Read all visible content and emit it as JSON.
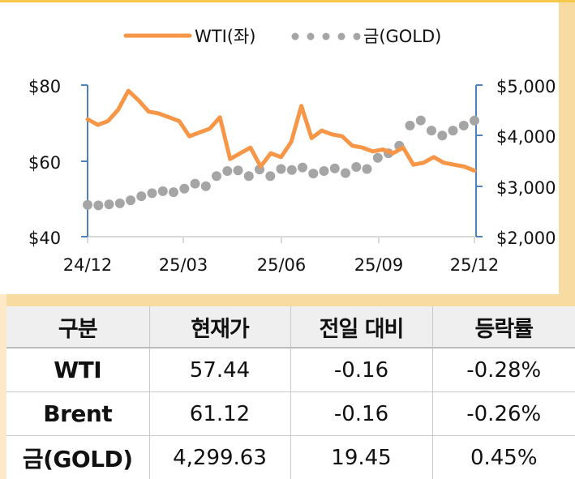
{
  "legend": {
    "wti_label": "WTI(좌)",
    "gold_label": "금(GOLD)"
  },
  "colors": {
    "wti": "#f79646",
    "gold": "#a5a5a5",
    "axis": "#4f81bd",
    "grid_base": "#d9d9d9",
    "frame_accent": "#f6c94a",
    "frame_fill": "#f7dba1"
  },
  "axes": {
    "left_ticks": [
      "$80",
      "$60",
      "$40"
    ],
    "right_ticks": [
      "$5,000",
      "$4,000",
      "$3,000",
      "$2,000"
    ],
    "x_ticks": [
      "24/12",
      "25/03",
      "25/06",
      "25/09",
      "25/12"
    ]
  },
  "chart_data": {
    "type": "line",
    "title": "",
    "xlabel": "",
    "ylabel": "",
    "x_tick_labels": [
      "24/12",
      "25/03",
      "25/06",
      "25/09",
      "25/12"
    ],
    "legend_position": "top",
    "grid": false,
    "y_left": {
      "label": "WTI",
      "range": [
        40,
        80
      ],
      "ticks": [
        "$40",
        "$60",
        "$80"
      ]
    },
    "y_right": {
      "label": "GOLD",
      "range": [
        2000,
        5000
      ],
      "ticks": [
        "$2,000",
        "$3,000",
        "$4,000",
        "$5,000"
      ]
    },
    "series": [
      {
        "name": "WTI(좌)",
        "axis": "left",
        "style": "solid-line",
        "color": "#f79646",
        "points": [
          [
            "24/12",
            71.0
          ],
          [
            "24/12+",
            69.5
          ],
          [
            "24/12++",
            70.5
          ],
          [
            "25/01a",
            73.5
          ],
          [
            "25/01b",
            78.5
          ],
          [
            "25/01c",
            76.0
          ],
          [
            "25/01d",
            73.0
          ],
          [
            "25/02a",
            72.5
          ],
          [
            "25/02b",
            71.5
          ],
          [
            "25/02c",
            70.5
          ],
          [
            "25/03",
            66.5
          ],
          [
            "25/03a",
            67.5
          ],
          [
            "25/03b",
            68.5
          ],
          [
            "25/03c",
            71.5
          ],
          [
            "25/04a",
            60.5
          ],
          [
            "25/04b",
            62.0
          ],
          [
            "25/04c",
            63.5
          ],
          [
            "25/05a",
            58.5
          ],
          [
            "25/05b",
            62.0
          ],
          [
            "25/05c",
            61.0
          ],
          [
            "25/06",
            65.0
          ],
          [
            "25/06a",
            74.5
          ],
          [
            "25/06b",
            66.0
          ],
          [
            "25/06c",
            68.0
          ],
          [
            "25/07a",
            67.0
          ],
          [
            "25/07b",
            66.5
          ],
          [
            "25/08a",
            64.0
          ],
          [
            "25/08b",
            63.5
          ],
          [
            "25/08c",
            62.5
          ],
          [
            "25/09",
            63.0
          ],
          [
            "25/09a",
            62.0
          ],
          [
            "25/09b",
            63.5
          ],
          [
            "25/10a",
            59.0
          ],
          [
            "25/10b",
            59.5
          ],
          [
            "25/10c",
            61.0
          ],
          [
            "25/11a",
            59.5
          ],
          [
            "25/11b",
            59.0
          ],
          [
            "25/11c",
            58.5
          ],
          [
            "25/12",
            57.44
          ]
        ]
      },
      {
        "name": "금(GOLD)",
        "axis": "right",
        "style": "dotted",
        "color": "#a5a5a5",
        "points": [
          [
            "24/12",
            2630
          ],
          [
            "24/12+",
            2620
          ],
          [
            "25/01a",
            2640
          ],
          [
            "25/01b",
            2660
          ],
          [
            "25/01c",
            2720
          ],
          [
            "25/02a",
            2800
          ],
          [
            "25/02b",
            2860
          ],
          [
            "25/02c",
            2900
          ],
          [
            "25/03",
            2880
          ],
          [
            "25/03a",
            2950
          ],
          [
            "25/03b",
            3050
          ],
          [
            "25/04a",
            3000
          ],
          [
            "25/04b",
            3200
          ],
          [
            "25/04c",
            3300
          ],
          [
            "25/05a",
            3310
          ],
          [
            "25/05b",
            3200
          ],
          [
            "25/05c",
            3330
          ],
          [
            "25/05d",
            3200
          ],
          [
            "25/06",
            3340
          ],
          [
            "25/06a",
            3320
          ],
          [
            "25/06b",
            3370
          ],
          [
            "25/07a",
            3250
          ],
          [
            "25/07b",
            3300
          ],
          [
            "25/07c",
            3350
          ],
          [
            "25/08a",
            3260
          ],
          [
            "25/08b",
            3380
          ],
          [
            "25/08c",
            3340
          ],
          [
            "25/09",
            3560
          ],
          [
            "25/09a",
            3650
          ],
          [
            "25/09b",
            3800
          ],
          [
            "25/10a",
            4200
          ],
          [
            "25/10b",
            4300
          ],
          [
            "25/10c",
            4100
          ],
          [
            "25/11a",
            4000
          ],
          [
            "25/11b",
            4100
          ],
          [
            "25/11c",
            4200
          ],
          [
            "25/12",
            4299.63
          ]
        ]
      }
    ]
  },
  "table": {
    "headers": [
      "구분",
      "현재가",
      "전일 대비",
      "등락률"
    ],
    "rows": [
      {
        "name": "WTI",
        "price": "57.44",
        "change": "-0.16",
        "pct": "-0.28%"
      },
      {
        "name": "Brent",
        "price": "61.12",
        "change": "-0.16",
        "pct": "-0.26%"
      },
      {
        "name": "금(GOLD)",
        "price": "4,299.63",
        "change": "19.45",
        "pct": "0.45%"
      }
    ]
  }
}
